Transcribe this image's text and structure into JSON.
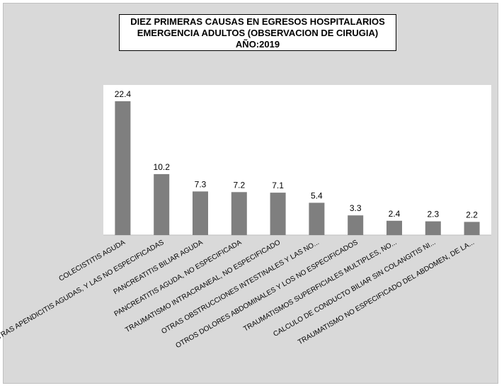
{
  "chart_data": {
    "type": "bar",
    "title_lines": [
      "DIEZ PRIMERAS CAUSAS EN EGRESOS HOSPITALARIOS",
      "EMERGENCIA ADULTOS (OBSERVACION DE CIRUGIA)",
      "AÑO:2019"
    ],
    "categories": [
      "COLECISTITIS AGUDA",
      "OTRAS APENDICITIS AGUDAS, Y LAS NO ESPECIFICADAS",
      "PANCREATITIS BILIAR AGUDA",
      "PANCREATITIS AGUDA, NO ESPECIFICADA",
      "TRAUMATISMO INTRACRANEAL, NO ESPECIFICADO",
      "OTRAS OBSTRUCCIONES INTESTINALES Y LAS NO...",
      "OTROS DOLORES ABDOMINALES Y LOS NO ESPECIFICADOS",
      "TRAUMATISMOS SUPERFICIALES MULTIPLES, NO...",
      "CALCULO DE CONDUCTO BILIAR SIN COLANGITIS NI...",
      "TRAUMATISMO NO ESPECIFICADO DEL ABDOMEN, DE LA..."
    ],
    "values": [
      22.4,
      10.2,
      7.3,
      7.2,
      7.1,
      5.4,
      3.3,
      2.4,
      2.3,
      2.2
    ],
    "data_labels": [
      "22.4",
      "10.2",
      "7.3",
      "7.2",
      "7.1",
      "5.4",
      "3.3",
      "2.4",
      "2.3",
      "2.2"
    ],
    "ylim": [
      0,
      25
    ],
    "bar_color": "#7f7f7f",
    "plot_background": "#ffffff",
    "chart_background": "#d9d9d9",
    "grid": false,
    "legend": "none"
  }
}
